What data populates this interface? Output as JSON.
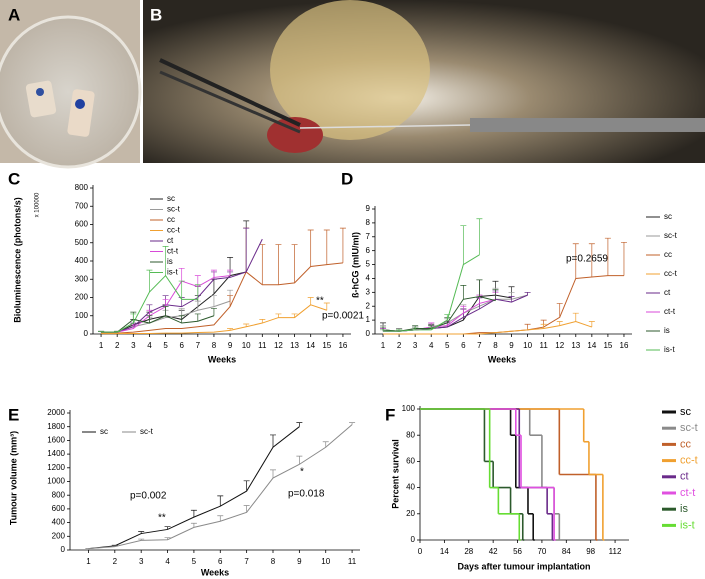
{
  "photos": [
    {
      "label": "A"
    },
    {
      "label": "B"
    }
  ],
  "chart_data": [
    {
      "type": "line",
      "label": "C",
      "ylabel": "Bioluminescence (photons/s)",
      "multiplier": "x 100000",
      "xlabel": "Weeks",
      "x": [
        1,
        2,
        3,
        4,
        5,
        6,
        7,
        8,
        9,
        10,
        11,
        12,
        13,
        14,
        15,
        16
      ],
      "xlim": [
        0.5,
        16.5
      ],
      "xticks": [
        1,
        2,
        3,
        4,
        5,
        6,
        7,
        8,
        9,
        10,
        11,
        12,
        13,
        14,
        15,
        16
      ],
      "ylim": [
        0,
        800
      ],
      "yticks": [
        0,
        100,
        200,
        300,
        400,
        500,
        600,
        700,
        800
      ],
      "legend": "upper left",
      "annotations": [
        "**",
        "p=0.0021"
      ],
      "series": [
        {
          "name": "sc",
          "color": "#222222",
          "values": [
            10,
            10,
            50,
            80,
            100,
            80,
            150,
            220,
            320,
            340,
            null,
            null,
            null,
            null,
            null,
            null
          ],
          "errors": [
            5,
            5,
            30,
            40,
            60,
            50,
            60,
            80,
            100,
            280,
            null,
            null,
            null,
            null,
            null,
            null
          ]
        },
        {
          "name": "sc-t",
          "color": "#9a9a9a",
          "values": [
            10,
            10,
            40,
            60,
            90,
            100,
            130,
            150,
            180,
            null,
            null,
            null,
            null,
            null,
            null,
            null
          ],
          "errors": [
            3,
            3,
            20,
            30,
            40,
            40,
            50,
            60,
            60,
            null,
            null,
            null,
            null,
            null,
            null,
            null
          ]
        },
        {
          "name": "cc",
          "color": "#c0602a",
          "values": [
            5,
            5,
            10,
            20,
            30,
            30,
            40,
            50,
            150,
            340,
            270,
            270,
            280,
            370,
            380,
            390
          ],
          "errors": [
            null,
            null,
            null,
            null,
            null,
            null,
            null,
            null,
            60,
            240,
            220,
            220,
            210,
            200,
            190,
            190
          ]
        },
        {
          "name": "cc-t",
          "color": "#f0a030",
          "values": [
            2,
            2,
            3,
            3,
            5,
            5,
            8,
            10,
            20,
            40,
            60,
            90,
            90,
            160,
            130,
            null
          ],
          "errors": [
            null,
            null,
            null,
            null,
            null,
            null,
            null,
            null,
            10,
            15,
            20,
            20,
            20,
            40,
            40,
            null
          ]
        },
        {
          "name": "ct",
          "color": "#6a2a8a",
          "values": [
            10,
            10,
            40,
            120,
            160,
            150,
            200,
            300,
            310,
            340,
            520,
            null,
            null,
            null,
            null,
            null
          ],
          "errors": [
            3,
            3,
            20,
            40,
            50,
            50,
            60,
            40,
            30,
            240,
            null,
            null,
            null,
            null,
            null,
            null
          ]
        },
        {
          "name": "ct-t",
          "color": "#d84ad8",
          "values": [
            10,
            10,
            30,
            100,
            150,
            290,
            260,
            310,
            320,
            null,
            null,
            null,
            null,
            null,
            null,
            null
          ],
          "errors": [
            3,
            3,
            20,
            30,
            40,
            70,
            60,
            40,
            30,
            null,
            null,
            null,
            null,
            null,
            null,
            null
          ]
        },
        {
          "name": "is",
          "color": "#2c5a2c",
          "values": [
            10,
            10,
            80,
            60,
            100,
            60,
            70,
            100,
            null,
            null,
            null,
            null,
            null,
            null,
            null,
            null
          ],
          "errors": [
            3,
            3,
            40,
            40,
            50,
            40,
            40,
            40,
            null,
            null,
            null,
            null,
            null,
            null,
            null,
            null
          ]
        },
        {
          "name": "is-t",
          "color": "#55bb55",
          "values": [
            10,
            10,
            60,
            230,
            320,
            190,
            190,
            null,
            null,
            null,
            null,
            null,
            null,
            null,
            null,
            null
          ],
          "errors": [
            3,
            3,
            50,
            120,
            160,
            100,
            80,
            null,
            null,
            null,
            null,
            null,
            null,
            null,
            null,
            null
          ]
        }
      ]
    },
    {
      "type": "line",
      "label": "D",
      "ylabel": "ß-hCG (mIU/ml)",
      "xlabel": "Weeks",
      "x": [
        1,
        2,
        3,
        4,
        5,
        6,
        7,
        8,
        9,
        10,
        11,
        12,
        13,
        14,
        15,
        16
      ],
      "xlim": [
        0.5,
        16.5
      ],
      "xticks": [
        1,
        2,
        3,
        4,
        5,
        6,
        7,
        8,
        9,
        10,
        11,
        12,
        13,
        14,
        15,
        16
      ],
      "ylim": [
        0,
        9
      ],
      "yticks": [
        0,
        1,
        2,
        3,
        4,
        5,
        6,
        7,
        8,
        9
      ],
      "legend": "right",
      "annotations": [
        "p=0.2659"
      ],
      "series": [
        {
          "name": "sc",
          "color": "#222222",
          "values": [
            0.3,
            0.2,
            0.3,
            0.4,
            0.5,
            1.0,
            2.7,
            2.8,
            2.6,
            null,
            null,
            null,
            null,
            null,
            null,
            null
          ],
          "errors": [
            0.5,
            0.2,
            0.2,
            0.3,
            0.4,
            0.8,
            1.2,
            1.0,
            0.8,
            null,
            null,
            null,
            null,
            null,
            null,
            null
          ]
        },
        {
          "name": "sc-t",
          "color": "#9a9a9a",
          "values": [
            0.3,
            0.2,
            0.3,
            0.5,
            0.8,
            1.5,
            2.0,
            2.5,
            2.5,
            2.8,
            null,
            null,
            null,
            null,
            null,
            null
          ],
          "errors": [
            0.3,
            0.2,
            0.2,
            0.3,
            0.3,
            0.6,
            0.8,
            0.8,
            0.5,
            0.2,
            null,
            null,
            null,
            null,
            null,
            null
          ]
        },
        {
          "name": "cc",
          "color": "#c0602a",
          "values": [
            0,
            0,
            0,
            0,
            0,
            0,
            0.1,
            0.1,
            0.2,
            0.3,
            0.5,
            1.2,
            4.0,
            4.1,
            4.2,
            4.2
          ],
          "errors": [
            null,
            null,
            null,
            null,
            null,
            null,
            null,
            null,
            null,
            0.4,
            0.5,
            1.0,
            2.5,
            2.4,
            2.7,
            2.4
          ]
        },
        {
          "name": "cc-t",
          "color": "#f0a030",
          "values": [
            0,
            0,
            0,
            0,
            0,
            0,
            0,
            0.1,
            0.2,
            0.3,
            0.4,
            0.6,
            0.9,
            0.5,
            null,
            null
          ],
          "errors": [
            null,
            null,
            null,
            null,
            null,
            null,
            null,
            null,
            null,
            null,
            0.3,
            0.3,
            0.6,
            0.4,
            null,
            null
          ]
        },
        {
          "name": "ct",
          "color": "#6a2a8a",
          "values": [
            0.2,
            0.2,
            0.3,
            0.4,
            0.5,
            1.2,
            1.8,
            2.5,
            2.3,
            2.8,
            null,
            null,
            null,
            null,
            null,
            null
          ],
          "errors": [
            0.2,
            0.1,
            0.2,
            0.2,
            0.3,
            0.6,
            0.8,
            0.6,
            0.4,
            0.2,
            null,
            null,
            null,
            null,
            null,
            null
          ]
        },
        {
          "name": "ct-t",
          "color": "#d84ad8",
          "values": [
            0.2,
            0.2,
            0.3,
            0.5,
            0.6,
            1.5,
            2.2,
            2.5,
            null,
            null,
            null,
            null,
            null,
            null,
            null,
            null
          ],
          "errors": [
            0.2,
            0.1,
            0.2,
            0.3,
            0.3,
            0.5,
            0.6,
            0.5,
            null,
            null,
            null,
            null,
            null,
            null,
            null,
            null
          ]
        },
        {
          "name": "is",
          "color": "#2c5a2c",
          "values": [
            0.3,
            0.2,
            0.4,
            0.4,
            0.8,
            2.5,
            2.7,
            2.4,
            null,
            null,
            null,
            null,
            null,
            null,
            null,
            null
          ],
          "errors": [
            0.2,
            0.1,
            0.2,
            0.2,
            0.4,
            1.0,
            1.2,
            0.8,
            null,
            null,
            null,
            null,
            null,
            null,
            null,
            null
          ]
        },
        {
          "name": "is-t",
          "color": "#55bb55",
          "values": [
            0.2,
            0.2,
            0.3,
            0.3,
            1.0,
            5.0,
            5.7,
            null,
            null,
            null,
            null,
            null,
            null,
            null,
            null,
            null
          ],
          "errors": [
            0.1,
            0.1,
            0.2,
            0.2,
            0.4,
            2.8,
            2.6,
            null,
            null,
            null,
            null,
            null,
            null,
            null,
            null,
            null
          ]
        }
      ]
    },
    {
      "type": "line",
      "label": "E",
      "ylabel": "Tumour volume (mm³)",
      "xlabel": "Weeks",
      "x": [
        1,
        2,
        3,
        4,
        5,
        6,
        7,
        8,
        9,
        10,
        11
      ],
      "xlim": [
        0.3,
        11.3
      ],
      "xticks": [
        1,
        2,
        3,
        4,
        5,
        6,
        7,
        8,
        9,
        10,
        11
      ],
      "ylim": [
        0,
        2000
      ],
      "yticks": [
        0,
        200,
        400,
        600,
        800,
        1000,
        1200,
        1400,
        1600,
        1800,
        2000
      ],
      "legend": "top",
      "annotations": [
        "p=0.002",
        "**",
        "*",
        "p=0.018"
      ],
      "series": [
        {
          "name": "sc",
          "color": "#111111",
          "values": [
            20,
            60,
            240,
            300,
            480,
            640,
            860,
            1500,
            1800,
            null,
            null
          ],
          "errors": [
            5,
            10,
            30,
            40,
            100,
            150,
            150,
            180,
            60,
            null,
            null
          ]
        },
        {
          "name": "sc-t",
          "color": "#8a8a8a",
          "values": [
            20,
            50,
            140,
            150,
            330,
            420,
            550,
            1050,
            1250,
            1500,
            1830
          ],
          "errors": [
            5,
            10,
            20,
            30,
            60,
            80,
            100,
            120,
            120,
            80,
            30
          ]
        }
      ]
    },
    {
      "type": "step",
      "label": "F",
      "ylabel": "Percent survival",
      "xlabel": "Days after tumour implantation",
      "xlim": [
        0,
        120
      ],
      "xticks": [
        0,
        14,
        28,
        42,
        56,
        70,
        84,
        98,
        112
      ],
      "ylim": [
        0,
        100
      ],
      "yticks": [
        0,
        20,
        40,
        60,
        80,
        100
      ],
      "legend": "right",
      "series": [
        {
          "name": "sc",
          "color": "#111111",
          "x": [
            0,
            52,
            55,
            62,
            65
          ],
          "values": [
            100,
            80,
            40,
            20,
            0
          ]
        },
        {
          "name": "sc-t",
          "color": "#8a8a8a",
          "x": [
            0,
            63,
            70,
            77,
            80
          ],
          "values": [
            100,
            80,
            40,
            20,
            0
          ]
        },
        {
          "name": "cc",
          "color": "#c0602a",
          "x": [
            0,
            80,
            101
          ],
          "values": [
            100,
            50,
            0
          ]
        },
        {
          "name": "cc-t",
          "color": "#f0a030",
          "x": [
            0,
            94,
            97,
            105
          ],
          "values": [
            100,
            75,
            50,
            0
          ]
        },
        {
          "name": "ct",
          "color": "#6a2a8a",
          "x": [
            0,
            57,
            73,
            76
          ],
          "values": [
            100,
            40,
            20,
            0
          ]
        },
        {
          "name": "ct-t",
          "color": "#e050e0",
          "x": [
            0,
            55,
            58,
            77
          ],
          "values": [
            100,
            80,
            40,
            0
          ]
        },
        {
          "name": "is",
          "color": "#2c5a2c",
          "x": [
            0,
            37,
            42,
            52,
            59
          ],
          "values": [
            100,
            60,
            40,
            20,
            0
          ]
        },
        {
          "name": "is-t",
          "color": "#66dd33",
          "x": [
            0,
            40,
            45,
            57
          ],
          "values": [
            100,
            40,
            20,
            0
          ]
        }
      ]
    }
  ]
}
